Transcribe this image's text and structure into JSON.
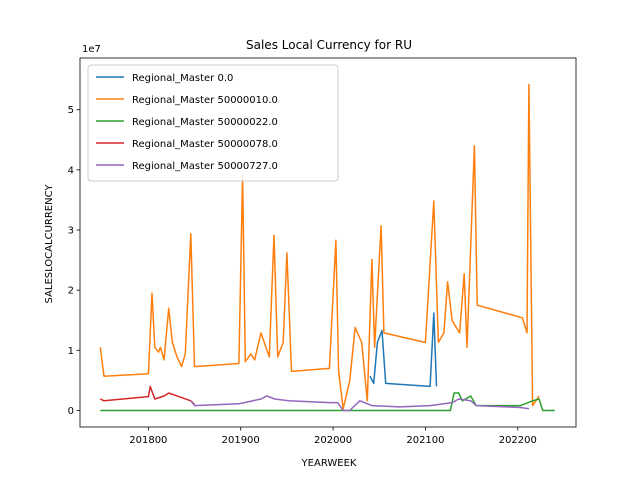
{
  "chart_data": {
    "type": "line",
    "title": "Sales Local Currency for RU",
    "x_label": "YEARWEEK",
    "y_label": "SALESLOCALCURRENCY",
    "y_offset_label": "1e7",
    "xlim": [
      201726,
      202263
    ],
    "ylim": [
      -0.275,
      5.86
    ],
    "xticks": [
      201800,
      201900,
      202000,
      202100,
      202200
    ],
    "yticks": [
      0,
      1,
      2,
      3,
      4,
      5
    ],
    "legend": "upper left",
    "series": [
      {
        "name": "Regional_Master 0.0",
        "color": "#1f77b4",
        "x": [
          202040,
          202044,
          202048,
          202053,
          202057,
          202105,
          202109,
          202112
        ],
        "values": [
          0.57,
          0.45,
          1.13,
          1.33,
          0.45,
          0.4,
          1.62,
          0.4
        ]
      },
      {
        "name": "Regional_Master 50000010.0",
        "color": "#ff7f0e",
        "x": [
          201748,
          201752,
          201800,
          201804,
          201807,
          201811,
          201813,
          201817,
          201822,
          201826,
          201831,
          201836,
          201840,
          201846,
          201850,
          201898,
          201902,
          201905,
          201911,
          201915,
          201922,
          201931,
          201936,
          201940,
          201946,
          201950,
          201955,
          201996,
          202003,
          202006,
          202011,
          202018,
          202024,
          202031,
          202037,
          202042,
          202045,
          202052,
          202055,
          202100,
          202109,
          202114,
          202120,
          202124,
          202129,
          202137,
          202142,
          202145,
          202153,
          202156,
          202205,
          202210,
          202212,
          202216,
          202223
        ],
        "values": [
          1.05,
          0.57,
          0.61,
          1.95,
          1.05,
          0.97,
          1.05,
          0.84,
          1.7,
          1.13,
          0.89,
          0.73,
          0.94,
          2.94,
          0.73,
          0.78,
          3.92,
          0.81,
          0.94,
          0.84,
          1.29,
          0.89,
          2.91,
          0.89,
          1.13,
          2.62,
          0.65,
          0.7,
          2.83,
          0.65,
          0.03,
          0.49,
          1.38,
          1.13,
          0.16,
          2.51,
          1.05,
          3.07,
          1.29,
          1.13,
          3.48,
          1.13,
          1.29,
          2.14,
          1.49,
          1.29,
          2.27,
          1.05,
          4.4,
          1.75,
          1.54,
          1.29,
          5.42,
          0.08,
          0.24
        ]
      },
      {
        "name": "Regional_Master 50000022.0",
        "color": "#2ca02c",
        "x": [
          201748,
          202127,
          202131,
          202136,
          202140,
          202149,
          202155,
          202203,
          202216,
          202223,
          202227,
          202240
        ],
        "values": [
          0,
          0,
          0.29,
          0.29,
          0.16,
          0.24,
          0.08,
          0.08,
          0.16,
          0.19,
          0,
          0
        ]
      },
      {
        "name": "Regional_Master 50000078.0",
        "color": "#d62728",
        "x": [
          201748,
          201752,
          201800,
          201802,
          201807,
          201817,
          201822,
          201833,
          201846,
          201850
        ],
        "values": [
          0.19,
          0.16,
          0.23,
          0.4,
          0.19,
          0.24,
          0.29,
          0.23,
          0.16,
          0.1
        ]
      },
      {
        "name": "Regional_Master 50000727.0",
        "color": "#9467bd",
        "x": [
          201846,
          201850,
          201898,
          201922,
          201928,
          201937,
          201952,
          201996,
          202005,
          202011,
          202018,
          202029,
          202042,
          202072,
          202105,
          202129,
          202136,
          202149,
          202155,
          202203,
          202212
        ],
        "values": [
          0.16,
          0.08,
          0.11,
          0.19,
          0.24,
          0.19,
          0.16,
          0.13,
          0.13,
          0,
          0,
          0.16,
          0.08,
          0.06,
          0.08,
          0.13,
          0.19,
          0.16,
          0.08,
          0.05,
          0.03
        ]
      }
    ]
  }
}
